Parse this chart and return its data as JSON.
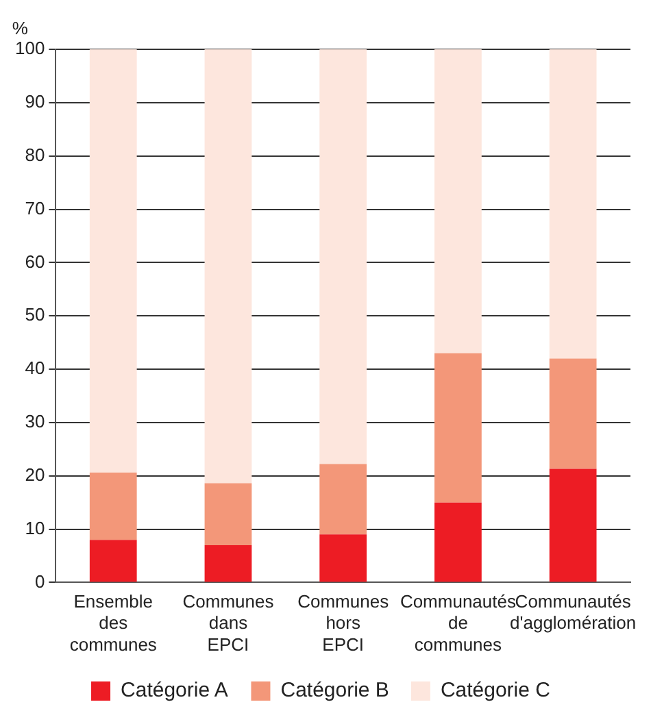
{
  "chart_data": {
    "type": "bar",
    "ylabel": "%",
    "stacked": true,
    "grid": "y",
    "legend": "bottom",
    "categories": [
      "Ensemble des communes",
      "Communes dans EPCI",
      "Communes hors EPCI",
      "Communautés de communes",
      "Communautés d'agglomération"
    ],
    "series": [
      {
        "name": "Catégorie A",
        "color": "#ed1c24",
        "values": [
          8,
          7,
          9,
          15,
          21.3
        ]
      },
      {
        "name": "Catégorie B",
        "color": "#f39779",
        "values": [
          12.6,
          11.6,
          13.2,
          28,
          20.7
        ]
      },
      {
        "name": "Catégorie C",
        "color": "#fde6dd",
        "values": [
          79.4,
          81.4,
          77.8,
          57,
          58
        ]
      }
    ],
    "ylim": [
      0,
      100
    ],
    "yticks": [
      0,
      10,
      20,
      30,
      40,
      50,
      60,
      70,
      80,
      90,
      100
    ]
  }
}
